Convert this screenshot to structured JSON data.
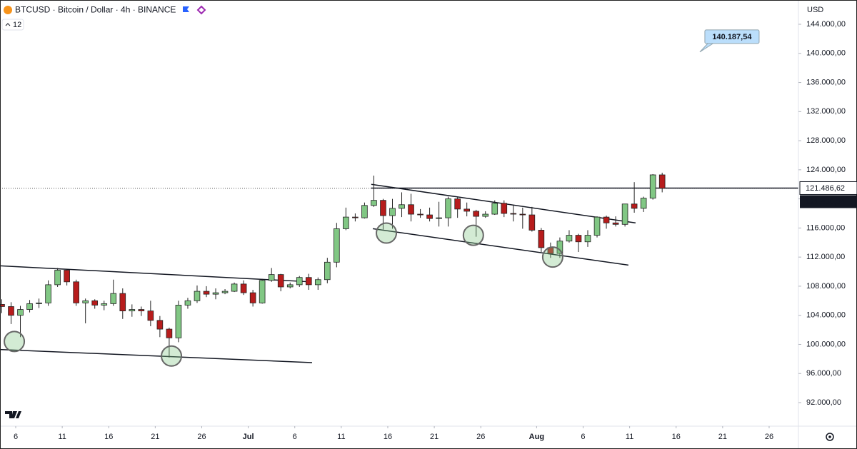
{
  "chart_data": {
    "type": "candlestick",
    "title": "BTCUSD · Bitcoin / Dollar · 4h · BINANCE",
    "indicator": "12",
    "currency": "USD",
    "up_color": "#81c784",
    "down_color": "#b71c1c",
    "x": [
      3.5,
      4.5,
      5.5,
      6.5,
      7.5,
      8.5,
      9.5,
      10.5,
      11.5,
      12.5,
      13.5,
      14.5,
      15.5,
      16.5,
      17.5,
      18.5,
      19.5,
      20.5,
      21.5,
      22.5,
      23.5,
      24.5,
      25.5,
      26.5,
      27.5,
      28.5,
      29.5,
      30.5,
      31.5,
      32.5,
      33.5,
      34.5,
      35.5,
      36.5,
      37.5,
      38.5,
      39.5,
      40.5,
      41.5,
      42.5,
      43.5,
      44.5,
      45.5,
      46.5,
      47.5,
      48.5,
      49.5,
      50.5,
      51.5,
      52.5,
      53.5,
      54.5,
      55.5,
      56.5,
      57.5,
      58.5,
      59.5,
      60.5,
      61.5,
      62.5,
      63.5,
      64.5,
      65.5,
      66.5,
      67.5,
      68.5,
      69.5,
      70.5,
      71.5,
      72.5,
      73.5,
      74.5
    ],
    "open": [
      105500,
      105200,
      104000,
      104800,
      105600,
      105700,
      108200,
      110200,
      108600,
      105700,
      106000,
      105400,
      105600,
      107000,
      104600,
      104800,
      104600,
      103300,
      102100,
      100900,
      105400,
      106000,
      107300,
      106900,
      107100,
      107300,
      108300,
      107100,
      105700,
      108800,
      109600,
      107900,
      108200,
      109200,
      108200,
      108900,
      111300,
      115900,
      117500,
      117400,
      119100,
      119800,
      117700,
      118700,
      119200,
      117900,
      117800,
      117300,
      117400,
      120000,
      118600,
      118300,
      117600,
      117900,
      119400,
      118000,
      117900,
      117800,
      115700,
      113300,
      112500,
      114200,
      115000,
      114100,
      115000,
      117500,
      116700,
      116500,
      119300,
      118700,
      120100,
      123300
    ],
    "high": [
      106200,
      105800,
      105300,
      106100,
      106300,
      108800,
      110500,
      110400,
      108900,
      106300,
      106200,
      106000,
      108900,
      107700,
      105500,
      105200,
      106000,
      103900,
      102300,
      106000,
      106400,
      108100,
      108000,
      107700,
      107600,
      108500,
      108800,
      107500,
      109000,
      110500,
      109700,
      108500,
      109400,
      109700,
      109200,
      111900,
      116700,
      118800,
      118000,
      119500,
      123200,
      120000,
      120000,
      120900,
      120700,
      118600,
      118800,
      119600,
      120300,
      120200,
      119500,
      118500,
      118300,
      119800,
      119800,
      119200,
      118800,
      118900,
      116000,
      114000,
      114700,
      115700,
      115200,
      115700,
      117600,
      117700,
      117600,
      119300,
      122300,
      120300,
      123400,
      123600
    ],
    "low": [
      104300,
      102800,
      101000,
      104400,
      105000,
      105300,
      107900,
      108100,
      105300,
      102900,
      104900,
      104700,
      105300,
      103500,
      103800,
      103900,
      102500,
      101000,
      98200,
      100300,
      104900,
      105700,
      106500,
      106200,
      106900,
      107200,
      106800,
      105200,
      105600,
      108600,
      107300,
      107700,
      107900,
      107500,
      107500,
      108400,
      110600,
      115700,
      116900,
      117300,
      118900,
      115800,
      115900,
      117500,
      116900,
      117400,
      116900,
      116200,
      116200,
      117400,
      117600,
      114800,
      117400,
      117800,
      117500,
      116900,
      115900,
      115500,
      112700,
      111900,
      111900,
      114000,
      112700,
      113400,
      114700,
      115900,
      116200,
      116200,
      118100,
      118200,
      119900,
      120900
    ],
    "close": [
      105200,
      104000,
      104800,
      105600,
      105700,
      108200,
      110200,
      108600,
      105700,
      106000,
      105400,
      105600,
      107000,
      104600,
      104800,
      104600,
      103300,
      102100,
      100900,
      105400,
      106000,
      107300,
      106900,
      107100,
      107300,
      108300,
      107100,
      105700,
      108800,
      109600,
      107900,
      108200,
      109200,
      108200,
      108900,
      111300,
      115900,
      117500,
      117400,
      119100,
      119800,
      117700,
      118700,
      119200,
      117900,
      117800,
      117300,
      117400,
      120000,
      118600,
      118300,
      117600,
      117900,
      119400,
      118000,
      117900,
      117800,
      115700,
      113300,
      112500,
      114200,
      115000,
      114100,
      115000,
      117500,
      116700,
      116500,
      119300,
      118700,
      120100,
      123300,
      121456.34
    ],
    "xlim": [
      3.31,
      89.15
    ],
    "xticks": [
      {
        "value": 5,
        "label": "6"
      },
      {
        "value": 10,
        "label": "11"
      },
      {
        "value": 15,
        "label": "16"
      },
      {
        "value": 20,
        "label": "21"
      },
      {
        "value": 25,
        "label": "26"
      },
      {
        "value": 30,
        "label": "Jul"
      },
      {
        "value": 35,
        "label": "6"
      },
      {
        "value": 40,
        "label": "11"
      },
      {
        "value": 45,
        "label": "16"
      },
      {
        "value": 50,
        "label": "21"
      },
      {
        "value": 55,
        "label": "26"
      },
      {
        "value": 61,
        "label": "Aug"
      },
      {
        "value": 66,
        "label": "6"
      },
      {
        "value": 71,
        "label": "11"
      },
      {
        "value": 76,
        "label": "16"
      },
      {
        "value": 81,
        "label": "21"
      },
      {
        "value": 86,
        "label": "26"
      }
    ],
    "ylim": [
      88763,
      147336
    ],
    "yticks": [
      {
        "value": 144000,
        "label": "144.000,00"
      },
      {
        "value": 140000,
        "label": "140.000,00"
      },
      {
        "value": 136000,
        "label": "136.000,00"
      },
      {
        "value": 132000,
        "label": "132.000,00"
      },
      {
        "value": 128000,
        "label": "128.000,00"
      },
      {
        "value": 124000,
        "label": "124.000,00"
      },
      {
        "value": 120000,
        "label": "120.000,00"
      },
      {
        "value": 116000,
        "label": "116.000,00"
      },
      {
        "value": 112000,
        "label": "112.000,00"
      },
      {
        "value": 108000,
        "label": "108.000,00"
      },
      {
        "value": 104000,
        "label": "104.000,00"
      },
      {
        "value": 100000,
        "label": "100.000,00"
      },
      {
        "value": 96000,
        "label": "96.000,00"
      },
      {
        "value": 92000,
        "label": "92.000,00"
      }
    ],
    "horizontal_line": {
      "value": 121486.62,
      "label": "121.486,62",
      "x_start": 43.2
    },
    "last_price": {
      "value": 121456.34,
      "label": "121.456,34"
    },
    "trendlines": [
      {
        "x": [
          3.31,
          36.71
        ],
        "y": [
          110800,
          108600
        ]
      },
      {
        "x": [
          3.31,
          36.86
        ],
        "y": [
          99300,
          97500
        ]
      },
      {
        "x": [
          43.23,
          71.64
        ],
        "y": [
          122000,
          116700
        ]
      },
      {
        "x": [
          43.39,
          70.87
        ],
        "y": [
          115900,
          110900
        ]
      }
    ],
    "markers": {
      "x": [
        4.85,
        21.74,
        44.85,
        54.2,
        62.73
      ],
      "y": [
        100400,
        98400,
        115300,
        115000,
        112000
      ]
    },
    "callout": {
      "x": 78.55,
      "value": 140187.54,
      "value_label": "140.187,54"
    }
  }
}
